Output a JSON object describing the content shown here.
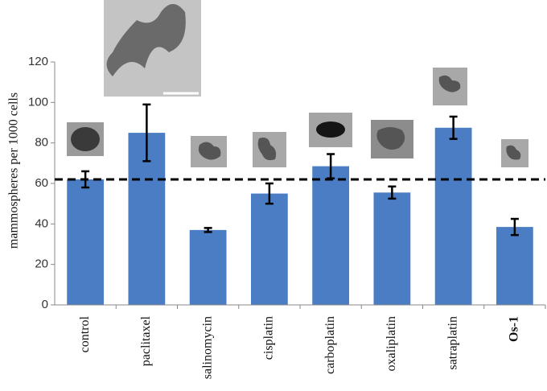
{
  "chart_data": {
    "type": "bar",
    "y_label": "mammospheres per 1000 cells",
    "categories": [
      "control",
      "paclitaxel",
      "salinomycin",
      "cisplatin",
      "carboplatin",
      "oxaliplatin",
      "satraplatin",
      "Os-1"
    ],
    "values": [
      62,
      85,
      37,
      55,
      68.5,
      55.5,
      87.5,
      38.5
    ],
    "errors": [
      4,
      14,
      1,
      5,
      6,
      3,
      5.5,
      4
    ],
    "color": "#4a7dc4",
    "reference_line": 62,
    "bold_categories": [
      "Os-1"
    ],
    "ylim": [
      0,
      120
    ],
    "yticks": [
      0,
      20,
      40,
      60,
      80,
      100,
      120
    ],
    "grid": false
  }
}
